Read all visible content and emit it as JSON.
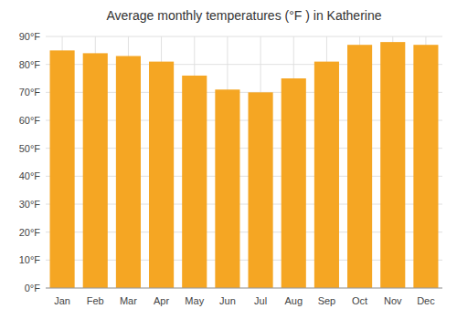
{
  "chart_data": {
    "type": "bar",
    "title": "Average monthly temperatures (°F ) in Katherine",
    "categories": [
      "Jan",
      "Feb",
      "Mar",
      "Apr",
      "May",
      "Jun",
      "Jul",
      "Aug",
      "Sep",
      "Oct",
      "Nov",
      "Dec"
    ],
    "values": [
      85,
      84,
      83,
      81,
      76,
      71,
      70,
      75,
      81,
      87,
      88,
      87
    ],
    "color": "#F5A623",
    "ylim": [
      0,
      90
    ],
    "yticks": [
      {
        "value": 0,
        "label": "0°F"
      },
      {
        "value": 10,
        "label": "10°F"
      },
      {
        "value": 20,
        "label": "20°F"
      },
      {
        "value": 30,
        "label": "30°F"
      },
      {
        "value": 40,
        "label": "40°F"
      },
      {
        "value": 50,
        "label": "50°F"
      },
      {
        "value": 60,
        "label": "60°F"
      },
      {
        "value": 70,
        "label": "70°F"
      },
      {
        "value": 80,
        "label": "80°F"
      },
      {
        "value": 90,
        "label": "90°F"
      }
    ],
    "grid": true
  }
}
